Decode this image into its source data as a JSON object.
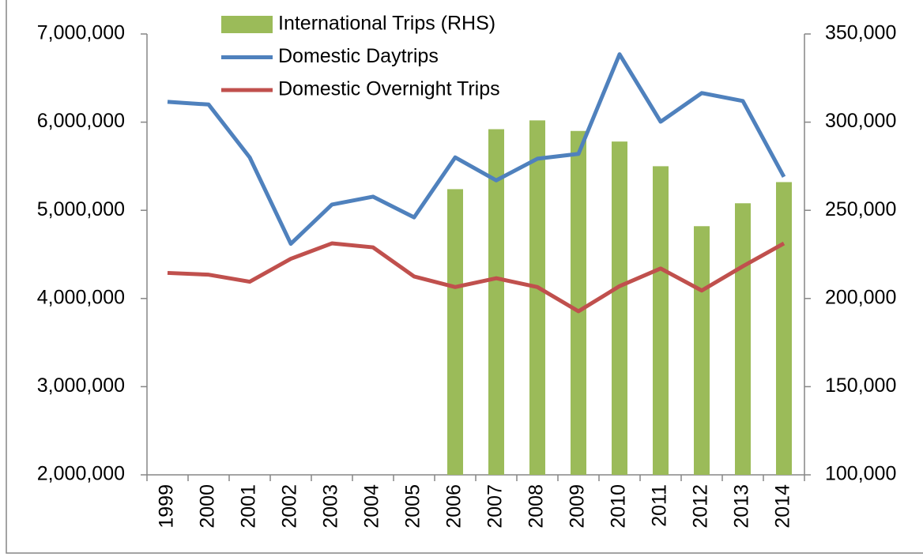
{
  "chart_data": {
    "type": "bar-line",
    "categories": [
      "1999",
      "2000",
      "2001",
      "2002",
      "2003",
      "2004",
      "2005",
      "2006",
      "2007",
      "2008",
      "2009",
      "2010",
      "2011",
      "2012",
      "2013",
      "2014"
    ],
    "series": [
      {
        "name": "International Trips (RHS)",
        "type": "bar",
        "axis": "y2",
        "color": "#9bbb59",
        "values": [
          null,
          null,
          null,
          null,
          null,
          null,
          null,
          262000,
          296000,
          301000,
          295000,
          289000,
          275000,
          241000,
          254000,
          266000
        ]
      },
      {
        "name": "Domestic Daytrips",
        "type": "line",
        "color": "#4f81bd",
        "values": [
          6230000,
          6200000,
          5600000,
          4620000,
          5065000,
          5155000,
          4920000,
          5600000,
          5340000,
          5585000,
          5640000,
          6770000,
          6005000,
          6330000,
          6240000,
          5380000
        ]
      },
      {
        "name": "Domestic Overnight Trips",
        "type": "line",
        "color": "#c0504d",
        "values": [
          4290000,
          4270000,
          4190000,
          4450000,
          4625000,
          4580000,
          4250000,
          4130000,
          4230000,
          4130000,
          3855000,
          4140000,
          4340000,
          4090000,
          4365000,
          4625000
        ]
      }
    ],
    "ylim": [
      2000000,
      7000000
    ],
    "yticks": [
      {
        "value": 2000000,
        "label": "2,000,000"
      },
      {
        "value": 3000000,
        "label": "3,000,000"
      },
      {
        "value": 4000000,
        "label": "4,000,000"
      },
      {
        "value": 5000000,
        "label": "5,000,000"
      },
      {
        "value": 6000000,
        "label": "6,000,000"
      },
      {
        "value": 7000000,
        "label": "7,000,000"
      }
    ],
    "y2lim": [
      100000,
      350000
    ],
    "y2ticks": [
      {
        "value": 100000,
        "label": "100,000"
      },
      {
        "value": 150000,
        "label": "150,000"
      },
      {
        "value": 200000,
        "label": "200,000"
      },
      {
        "value": 250000,
        "label": "250,000"
      },
      {
        "value": 300000,
        "label": "300,000"
      },
      {
        "value": 350000,
        "label": "350,000"
      }
    ],
    "legend": "top"
  }
}
